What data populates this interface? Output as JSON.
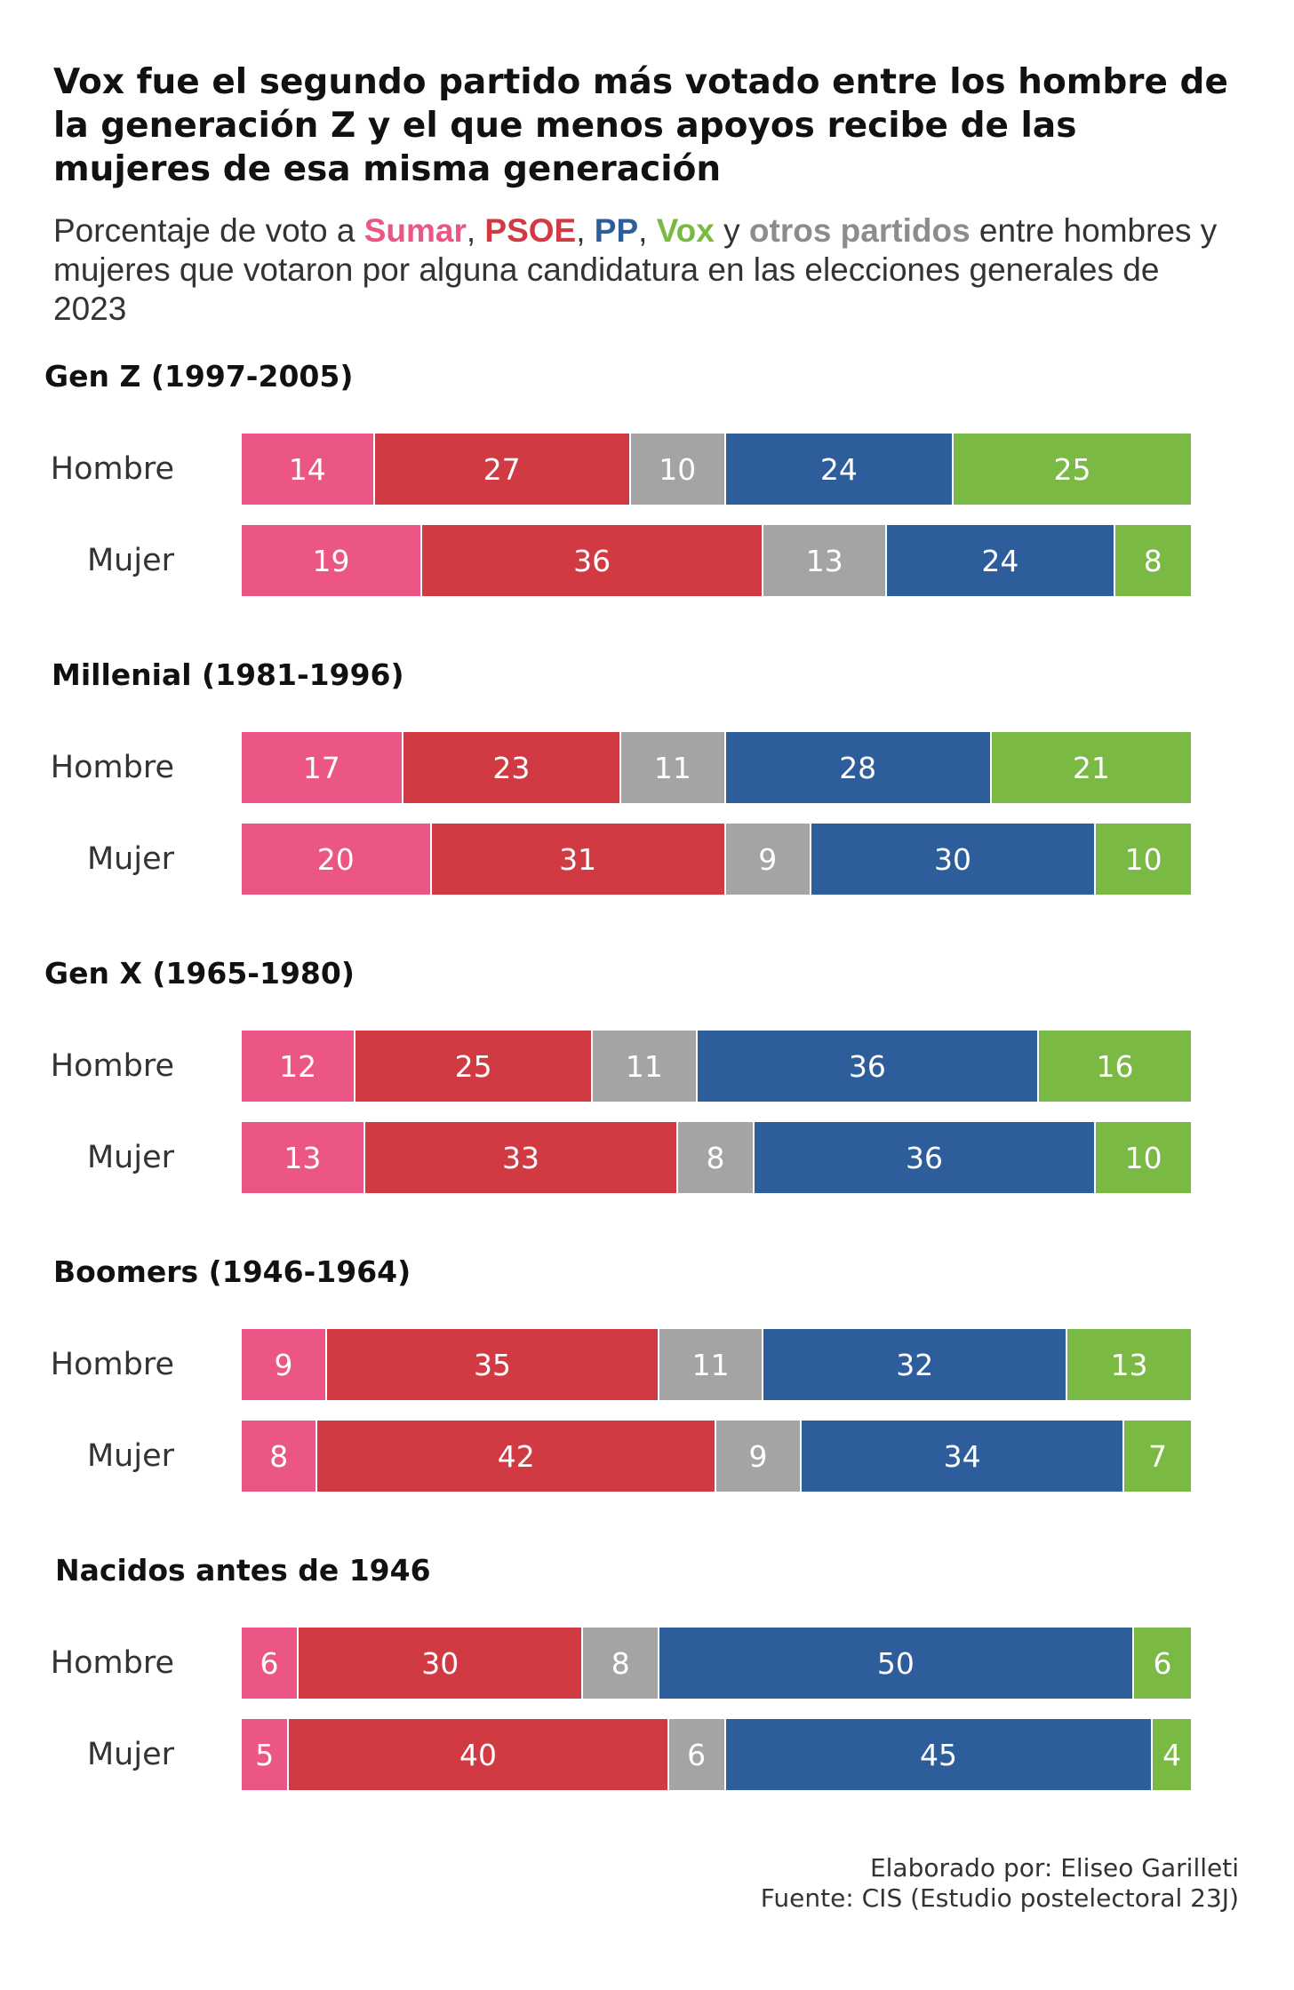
{
  "title": "Vox fue el segundo partido más votado entre los hombre de la generación Z y el que menos apoyos recibe de las mujeres de esa misma generación",
  "subtitle": {
    "prefix": "Porcentaje de voto a ",
    "sumar": "Sumar",
    "sep1": ", ",
    "psoe": "PSOE",
    "sep2": ", ",
    "pp": "PP",
    "sep3": ", ",
    "vox": "Vox",
    "and": " y ",
    "otros": "otros partidos",
    "suffix": " entre hombres y mujeres que votaron por alguna candidatura en las elecciones generales de 2023"
  },
  "colors": {
    "sumar": "#ec5684",
    "psoe": "#d13a43",
    "otros": "#a4a4a4",
    "pp": "#2e5d9b",
    "vox": "#7ab943"
  },
  "chart_data": {
    "type": "bar",
    "orientation": "horizontal-stacked",
    "xlim": [
      0,
      100
    ],
    "series_order": [
      "sumar",
      "psoe",
      "otros",
      "pp",
      "vox"
    ],
    "groups": [
      {
        "title": "Gen Z (1997-2005)",
        "rows": [
          {
            "label": "Hombre",
            "values": [
              14,
              27,
              10,
              24,
              25
            ]
          },
          {
            "label": "Mujer",
            "values": [
              19,
              36,
              13,
              24,
              8
            ]
          }
        ]
      },
      {
        "title": "Millenial (1981-1996)",
        "rows": [
          {
            "label": "Hombre",
            "values": [
              17,
              23,
              11,
              28,
              21
            ]
          },
          {
            "label": "Mujer",
            "values": [
              20,
              31,
              9,
              30,
              10
            ]
          }
        ]
      },
      {
        "title": "Gen X (1965-1980)",
        "rows": [
          {
            "label": "Hombre",
            "values": [
              12,
              25,
              11,
              36,
              16
            ]
          },
          {
            "label": "Mujer",
            "values": [
              13,
              33,
              8,
              36,
              10
            ]
          }
        ]
      },
      {
        "title": "Boomers (1946-1964)",
        "rows": [
          {
            "label": "Hombre",
            "values": [
              9,
              35,
              11,
              32,
              13
            ]
          },
          {
            "label": "Mujer",
            "values": [
              8,
              42,
              9,
              34,
              7
            ]
          }
        ]
      },
      {
        "title": "Nacidos antes de 1946",
        "rows": [
          {
            "label": "Hombre",
            "values": [
              6,
              30,
              8,
              50,
              6
            ]
          },
          {
            "label": "Mujer",
            "values": [
              5,
              40,
              6,
              45,
              4
            ]
          }
        ]
      }
    ]
  },
  "footer": {
    "author": "Elaborado por: Eliseo Garilleti",
    "source": "Fuente: CIS (Estudio postelectoral 23J)"
  }
}
